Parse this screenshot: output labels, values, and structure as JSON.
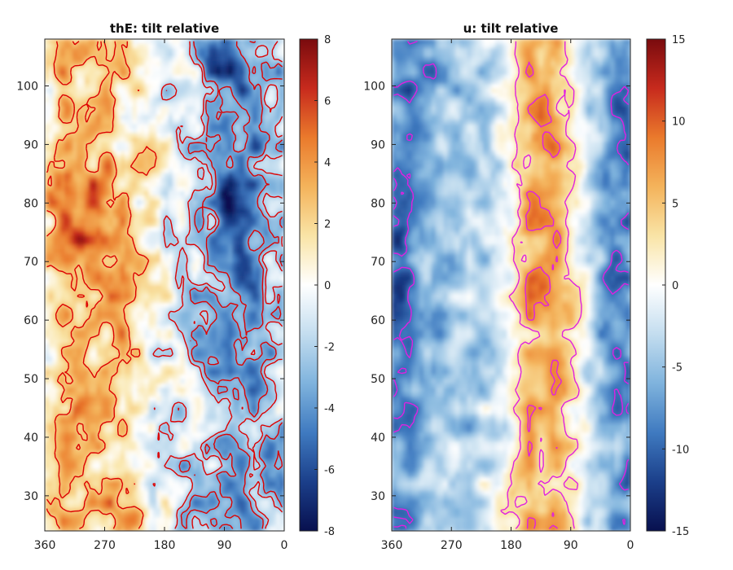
{
  "chart_data": [
    {
      "type": "heatmap",
      "title": "thE: tilt relative",
      "xlabel": "",
      "ylabel": "",
      "x_reversed": true,
      "xlim": [
        0,
        360
      ],
      "ylim": [
        24,
        108
      ],
      "xticks": [
        360,
        270,
        180,
        90,
        0
      ],
      "yticks": [
        30,
        40,
        50,
        60,
        70,
        80,
        90,
        100
      ],
      "colorbar": {
        "range": [
          -8,
          8
        ],
        "ticks": [
          -8,
          -6,
          -4,
          -2,
          0,
          2,
          4,
          6,
          8
        ],
        "colormap": "blue-white-red"
      },
      "contour_color": "#dd0000",
      "field_structure": {
        "x_samples": [
          360,
          330,
          300,
          270,
          240,
          210,
          180,
          150,
          120,
          90,
          60,
          30,
          0
        ],
        "mean_value_by_x": [
          1.5,
          2.5,
          2.5,
          2.0,
          1.8,
          0.8,
          -0.5,
          -1.5,
          -2.5,
          -3.5,
          -4.0,
          -3.0,
          -2.0
        ],
        "notes": "warm anomaly strongest near x=300 at y=75-82; cold core near x=75 at y=80"
      }
    },
    {
      "type": "heatmap",
      "title": "u: tilt relative",
      "xlabel": "",
      "ylabel": "",
      "x_reversed": true,
      "xlim": [
        0,
        360
      ],
      "ylim": [
        24,
        108
      ],
      "xticks": [
        360,
        270,
        180,
        90,
        0
      ],
      "yticks": [
        30,
        40,
        50,
        60,
        70,
        80,
        90,
        100
      ],
      "colorbar": {
        "range": [
          -15,
          15
        ],
        "ticks": [
          -15,
          -10,
          -5,
          0,
          5,
          10,
          15
        ],
        "colormap": "blue-white-red"
      },
      "contour_color": "#e020e0",
      "field_structure": {
        "x_samples": [
          360,
          330,
          300,
          270,
          240,
          210,
          180,
          150,
          120,
          90,
          60,
          30,
          0
        ],
        "mean_value_by_x": [
          -8,
          -7,
          -5,
          -4,
          -4,
          -3,
          0,
          5,
          6,
          3,
          -2,
          -6,
          -8
        ],
        "notes": "positive band centred near x=130-140, strongest (~8) near y=65 and y=80"
      }
    }
  ],
  "colors": {
    "cmap": [
      "#08104f",
      "#1b3f8a",
      "#3f7ac0",
      "#7fb3dd",
      "#c3ddef",
      "#ffffff",
      "#f9e4a6",
      "#f4b35b",
      "#ea7a2c",
      "#c72a1d",
      "#7a0b0e"
    ]
  }
}
